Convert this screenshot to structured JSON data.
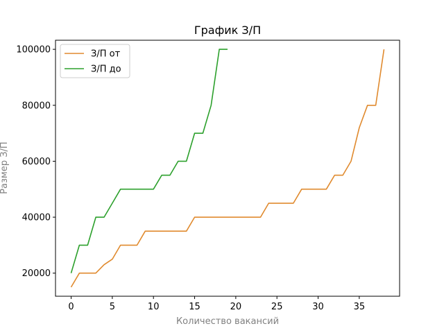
{
  "chart_data": {
    "type": "line",
    "title": "График З/П",
    "xlabel": "Количество вакансий",
    "ylabel": "Размер З/П",
    "xlim": [
      -1.9,
      39.9
    ],
    "ylim": [
      11750,
      103250
    ],
    "xticks": [
      0,
      5,
      10,
      15,
      20,
      25,
      30,
      35
    ],
    "yticks": [
      20000,
      40000,
      60000,
      80000,
      100000
    ],
    "ytick_labels": [
      "20000",
      "40000",
      "60000",
      "80000",
      "100000"
    ],
    "grid": false,
    "legend_position": "top-left",
    "series": [
      {
        "name": "З/П от",
        "color": "#e08a2e",
        "x": [
          0,
          1,
          2,
          3,
          4,
          5,
          6,
          7,
          8,
          9,
          10,
          11,
          12,
          13,
          14,
          15,
          16,
          17,
          18,
          19,
          20,
          21,
          22,
          23,
          24,
          25,
          26,
          27,
          28,
          29,
          30,
          31,
          32,
          33,
          34,
          35,
          36,
          37,
          38
        ],
        "y": [
          15000,
          20000,
          20000,
          20000,
          23000,
          25000,
          30000,
          30000,
          30000,
          35000,
          35000,
          35000,
          35000,
          35000,
          35000,
          40000,
          40000,
          40000,
          40000,
          40000,
          40000,
          40000,
          40000,
          40000,
          45000,
          45000,
          45000,
          45000,
          50000,
          50000,
          50000,
          50000,
          55000,
          55000,
          60000,
          72000,
          80000,
          80000,
          100000
        ]
      },
      {
        "name": "З/П до",
        "color": "#2ca02c",
        "x": [
          0,
          1,
          2,
          3,
          4,
          5,
          6,
          7,
          8,
          9,
          10,
          11,
          12,
          13,
          14,
          15,
          16,
          17,
          18,
          19
        ],
        "y": [
          20000,
          30000,
          30000,
          40000,
          40000,
          45000,
          50000,
          50000,
          50000,
          50000,
          50000,
          55000,
          55000,
          60000,
          60000,
          70000,
          70000,
          80000,
          100000,
          100000
        ]
      }
    ]
  }
}
